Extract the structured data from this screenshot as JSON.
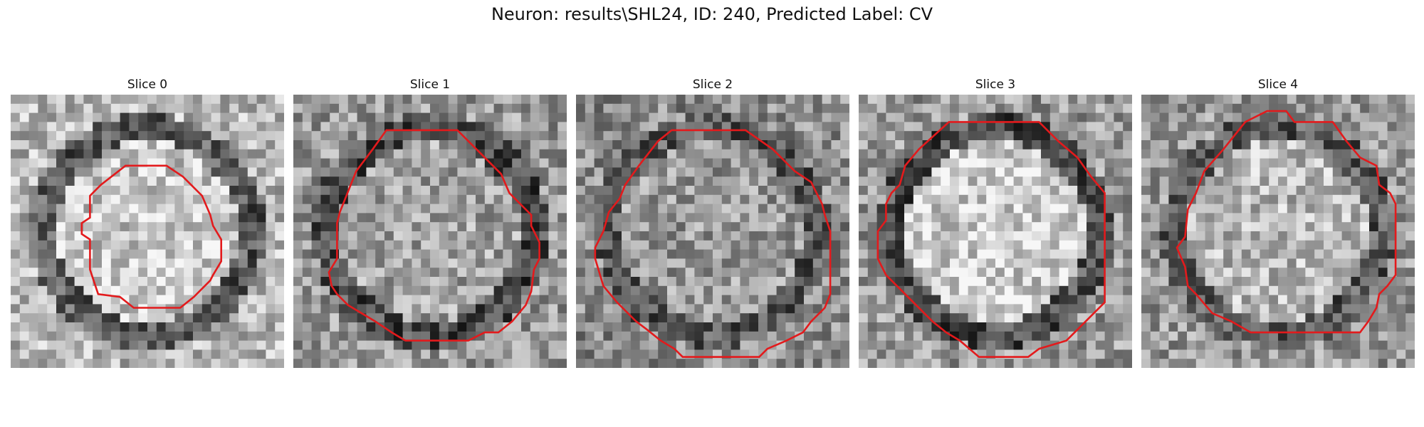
{
  "figure": {
    "title": "Neuron: results\\SHL24, ID: 240, Predicted Label: CV",
    "contour_color": "#e31a1c",
    "grid_size": 30
  },
  "slices": [
    {
      "title": "Slice 0",
      "seed": 11,
      "inner": 0.78,
      "ring": 0.35,
      "outer": 0.72,
      "contour": [
        [
          0.42,
          0.26
        ],
        [
          0.57,
          0.26
        ],
        [
          0.63,
          0.3
        ],
        [
          0.7,
          0.37
        ],
        [
          0.73,
          0.44
        ],
        [
          0.74,
          0.48
        ],
        [
          0.77,
          0.53
        ],
        [
          0.77,
          0.61
        ],
        [
          0.74,
          0.66
        ],
        [
          0.73,
          0.68
        ],
        [
          0.67,
          0.74
        ],
        [
          0.62,
          0.78
        ],
        [
          0.6,
          0.78
        ],
        [
          0.45,
          0.78
        ],
        [
          0.4,
          0.74
        ],
        [
          0.32,
          0.73
        ],
        [
          0.29,
          0.64
        ],
        [
          0.29,
          0.53
        ],
        [
          0.26,
          0.51
        ],
        [
          0.26,
          0.47
        ],
        [
          0.29,
          0.45
        ],
        [
          0.29,
          0.37
        ],
        [
          0.33,
          0.33
        ]
      ]
    },
    {
      "title": "Slice 1",
      "seed": 23,
      "inner": 0.64,
      "ring": 0.3,
      "outer": 0.6,
      "contour": [
        [
          0.34,
          0.13
        ],
        [
          0.6,
          0.13
        ],
        [
          0.67,
          0.2
        ],
        [
          0.76,
          0.29
        ],
        [
          0.79,
          0.36
        ],
        [
          0.87,
          0.44
        ],
        [
          0.87,
          0.48
        ],
        [
          0.9,
          0.54
        ],
        [
          0.9,
          0.6
        ],
        [
          0.88,
          0.64
        ],
        [
          0.87,
          0.72
        ],
        [
          0.85,
          0.77
        ],
        [
          0.8,
          0.83
        ],
        [
          0.75,
          0.87
        ],
        [
          0.7,
          0.87
        ],
        [
          0.64,
          0.9
        ],
        [
          0.41,
          0.9
        ],
        [
          0.36,
          0.87
        ],
        [
          0.3,
          0.83
        ],
        [
          0.2,
          0.77
        ],
        [
          0.16,
          0.73
        ],
        [
          0.14,
          0.7
        ],
        [
          0.13,
          0.65
        ],
        [
          0.16,
          0.6
        ],
        [
          0.16,
          0.47
        ],
        [
          0.17,
          0.43
        ],
        [
          0.19,
          0.38
        ],
        [
          0.21,
          0.33
        ],
        [
          0.23,
          0.28
        ],
        [
          0.29,
          0.2
        ]
      ]
    },
    {
      "title": "Slice 2",
      "seed": 37,
      "inner": 0.6,
      "ring": 0.35,
      "outer": 0.55,
      "contour": [
        [
          0.35,
          0.13
        ],
        [
          0.62,
          0.13
        ],
        [
          0.72,
          0.2
        ],
        [
          0.8,
          0.28
        ],
        [
          0.86,
          0.32
        ],
        [
          0.9,
          0.4
        ],
        [
          0.91,
          0.44
        ],
        [
          0.93,
          0.5
        ],
        [
          0.93,
          0.73
        ],
        [
          0.91,
          0.78
        ],
        [
          0.86,
          0.83
        ],
        [
          0.83,
          0.87
        ],
        [
          0.77,
          0.9
        ],
        [
          0.7,
          0.93
        ],
        [
          0.67,
          0.96
        ],
        [
          0.39,
          0.96
        ],
        [
          0.36,
          0.93
        ],
        [
          0.31,
          0.9
        ],
        [
          0.26,
          0.86
        ],
        [
          0.22,
          0.83
        ],
        [
          0.15,
          0.76
        ],
        [
          0.1,
          0.7
        ],
        [
          0.07,
          0.6
        ],
        [
          0.07,
          0.56
        ],
        [
          0.1,
          0.5
        ],
        [
          0.12,
          0.43
        ],
        [
          0.16,
          0.38
        ],
        [
          0.18,
          0.33
        ],
        [
          0.23,
          0.26
        ],
        [
          0.3,
          0.17
        ]
      ]
    },
    {
      "title": "Slice 3",
      "seed": 41,
      "inner": 0.8,
      "ring": 0.3,
      "outer": 0.6,
      "contour": [
        [
          0.33,
          0.1
        ],
        [
          0.66,
          0.1
        ],
        [
          0.73,
          0.17
        ],
        [
          0.8,
          0.23
        ],
        [
          0.85,
          0.3
        ],
        [
          0.9,
          0.36
        ],
        [
          0.9,
          0.76
        ],
        [
          0.86,
          0.8
        ],
        [
          0.83,
          0.83
        ],
        [
          0.76,
          0.9
        ],
        [
          0.66,
          0.93
        ],
        [
          0.62,
          0.96
        ],
        [
          0.44,
          0.96
        ],
        [
          0.37,
          0.9
        ],
        [
          0.32,
          0.87
        ],
        [
          0.27,
          0.83
        ],
        [
          0.2,
          0.76
        ],
        [
          0.1,
          0.66
        ],
        [
          0.07,
          0.6
        ],
        [
          0.07,
          0.5
        ],
        [
          0.1,
          0.46
        ],
        [
          0.1,
          0.4
        ],
        [
          0.12,
          0.36
        ],
        [
          0.15,
          0.33
        ],
        [
          0.17,
          0.26
        ],
        [
          0.22,
          0.2
        ]
      ]
    },
    {
      "title": "Slice 4",
      "seed": 53,
      "inner": 0.72,
      "ring": 0.35,
      "outer": 0.6,
      "contour": [
        [
          0.38,
          0.1
        ],
        [
          0.46,
          0.06
        ],
        [
          0.53,
          0.06
        ],
        [
          0.56,
          0.1
        ],
        [
          0.7,
          0.1
        ],
        [
          0.75,
          0.17
        ],
        [
          0.8,
          0.23
        ],
        [
          0.86,
          0.26
        ],
        [
          0.87,
          0.33
        ],
        [
          0.91,
          0.36
        ],
        [
          0.93,
          0.4
        ],
        [
          0.93,
          0.66
        ],
        [
          0.9,
          0.7
        ],
        [
          0.87,
          0.73
        ],
        [
          0.86,
          0.78
        ],
        [
          0.83,
          0.83
        ],
        [
          0.8,
          0.87
        ],
        [
          0.4,
          0.87
        ],
        [
          0.33,
          0.83
        ],
        [
          0.26,
          0.8
        ],
        [
          0.2,
          0.73
        ],
        [
          0.17,
          0.7
        ],
        [
          0.16,
          0.63
        ],
        [
          0.13,
          0.56
        ],
        [
          0.16,
          0.52
        ],
        [
          0.17,
          0.42
        ],
        [
          0.2,
          0.36
        ],
        [
          0.23,
          0.28
        ],
        [
          0.3,
          0.2
        ]
      ]
    }
  ]
}
